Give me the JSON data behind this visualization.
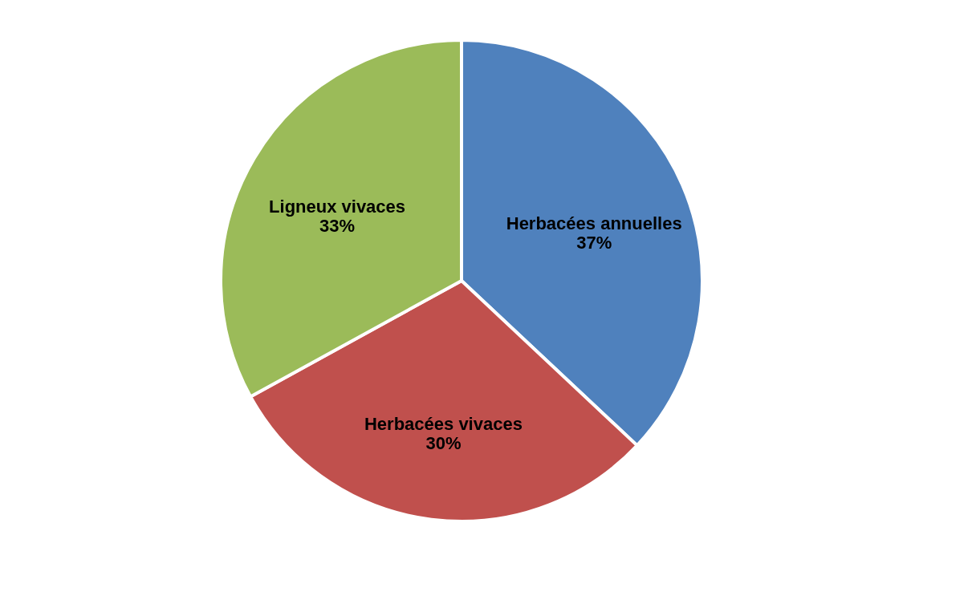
{
  "chart_data": {
    "type": "pie",
    "categories": [
      "Herbacées annuelles",
      "Herbacées vivaces",
      "Ligneux vivaces"
    ],
    "values": [
      37,
      30,
      33
    ],
    "colors": [
      "#4f81bd",
      "#c0504d",
      "#9bbb59"
    ],
    "value_labels": [
      "37%",
      "30%",
      "33%"
    ],
    "legend": false
  }
}
